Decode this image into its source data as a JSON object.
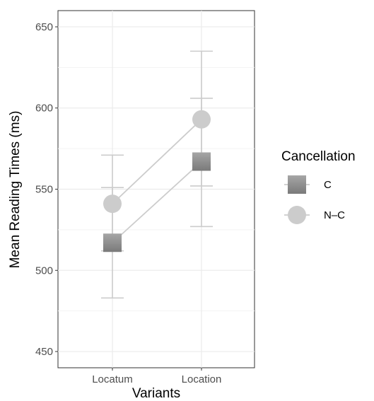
{
  "chart_data": {
    "type": "line",
    "xlabel": "Variants",
    "ylabel": "Mean Reading Times (ms)",
    "categories": [
      "Locatum",
      "Location"
    ],
    "ylim": [
      440,
      660
    ],
    "yticks": [
      450,
      500,
      550,
      600,
      650
    ],
    "grid": true,
    "legend": {
      "title": "Cancellation",
      "position": "right"
    },
    "series": [
      {
        "name": "C",
        "marker": "square",
        "color": "#8c8c8c",
        "values": [
          517,
          567
        ],
        "error_low": [
          483,
          527
        ],
        "error_high": [
          551,
          606
        ]
      },
      {
        "name": "N–C",
        "marker": "circle",
        "color": "#cccccc",
        "values": [
          541,
          593
        ],
        "error_low": [
          512,
          552
        ],
        "error_high": [
          571,
          635
        ]
      }
    ]
  }
}
